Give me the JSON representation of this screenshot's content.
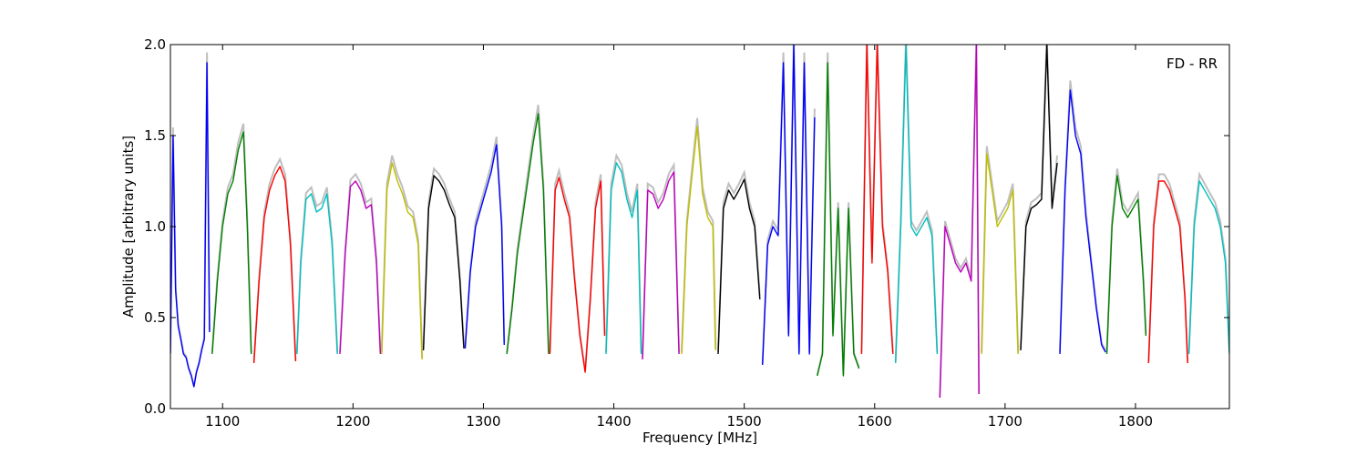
{
  "chart_data": {
    "type": "line",
    "xlabel": "Frequency [MHz]",
    "ylabel": "Amplitude [arbitrary units]",
    "xlim": [
      1060,
      1872
    ],
    "ylim": [
      0.0,
      2.0
    ],
    "xticks": [
      1100,
      1200,
      1300,
      1400,
      1500,
      1600,
      1700,
      1800
    ],
    "yticks": [
      0.0,
      0.5,
      1.0,
      1.5,
      2.0
    ],
    "xtick_labels": [
      "1100",
      "1200",
      "1300",
      "1400",
      "1500",
      "1600",
      "1700",
      "1800"
    ],
    "ytick_labels": [
      "0.0",
      "0.5",
      "1.0",
      "1.5",
      "2.0"
    ],
    "annotation": "FD - RR",
    "annotation_position": "top-right",
    "grid": false,
    "colors": {
      "background_trace": "#bfbfbf",
      "blue": "#0000ff",
      "green": "#008000",
      "red": "#ff0000",
      "cyan": "#00bfbf",
      "magenta": "#bf00bf",
      "yellow": "#bfbf00",
      "black": "#000000"
    },
    "series": [
      {
        "color": "blue",
        "x": [
          1060,
          1062,
          1064,
          1066,
          1068,
          1070,
          1072,
          1074,
          1076,
          1078,
          1080,
          1082,
          1084,
          1086,
          1088,
          1090
        ],
        "y": [
          0.3,
          1.5,
          0.65,
          0.45,
          0.38,
          0.3,
          0.28,
          0.22,
          0.18,
          0.12,
          0.2,
          0.25,
          0.32,
          0.38,
          1.9,
          0.42
        ]
      },
      {
        "color": "green",
        "x": [
          1092,
          1096,
          1100,
          1104,
          1108,
          1112,
          1116,
          1119,
          1122
        ],
        "y": [
          0.3,
          0.7,
          1.0,
          1.18,
          1.25,
          1.42,
          1.52,
          1.0,
          0.3
        ]
      },
      {
        "color": "red",
        "x": [
          1124,
          1128,
          1132,
          1136,
          1140,
          1144,
          1148,
          1152,
          1156
        ],
        "y": [
          0.25,
          0.7,
          1.05,
          1.2,
          1.28,
          1.33,
          1.25,
          0.9,
          0.26
        ]
      },
      {
        "color": "cyan",
        "x": [
          1157,
          1160,
          1164,
          1168,
          1172,
          1176,
          1180,
          1184,
          1188
        ],
        "y": [
          0.3,
          0.8,
          1.15,
          1.18,
          1.08,
          1.1,
          1.18,
          0.9,
          0.3
        ]
      },
      {
        "color": "magenta",
        "x": [
          1190,
          1194,
          1198,
          1202,
          1206,
          1210,
          1214,
          1218,
          1221
        ],
        "y": [
          0.3,
          0.85,
          1.22,
          1.25,
          1.2,
          1.1,
          1.12,
          0.8,
          0.3
        ]
      },
      {
        "color": "yellow",
        "x": [
          1222,
          1226,
          1230,
          1234,
          1238,
          1242,
          1246,
          1250,
          1253
        ],
        "y": [
          0.3,
          1.2,
          1.35,
          1.25,
          1.18,
          1.08,
          1.05,
          0.9,
          0.27
        ]
      },
      {
        "color": "black",
        "x": [
          1254,
          1258,
          1262,
          1266,
          1270,
          1274,
          1278,
          1282,
          1285
        ],
        "y": [
          0.32,
          1.1,
          1.28,
          1.25,
          1.2,
          1.12,
          1.05,
          0.7,
          0.33
        ]
      },
      {
        "color": "blue",
        "x": [
          1286,
          1290,
          1294,
          1298,
          1302,
          1306,
          1310,
          1314,
          1316
        ],
        "y": [
          0.33,
          0.75,
          1.0,
          1.1,
          1.2,
          1.3,
          1.45,
          1.0,
          0.35
        ]
      },
      {
        "color": "green",
        "x": [
          1318,
          1322,
          1326,
          1330,
          1334,
          1338,
          1342,
          1346,
          1350
        ],
        "y": [
          0.3,
          0.55,
          0.85,
          1.05,
          1.25,
          1.45,
          1.62,
          1.2,
          0.3
        ]
      },
      {
        "color": "red",
        "x": [
          1351,
          1355,
          1358,
          1362,
          1366,
          1370,
          1374,
          1378,
          1382,
          1386,
          1390,
          1393
        ],
        "y": [
          0.3,
          1.2,
          1.27,
          1.15,
          1.05,
          0.7,
          0.4,
          0.2,
          0.6,
          1.1,
          1.25,
          0.4
        ]
      },
      {
        "color": "cyan",
        "x": [
          1394,
          1398,
          1402,
          1406,
          1410,
          1414,
          1418,
          1421
        ],
        "y": [
          0.3,
          1.2,
          1.35,
          1.3,
          1.15,
          1.05,
          1.2,
          0.3
        ]
      },
      {
        "color": "magenta",
        "x": [
          1422,
          1426,
          1430,
          1434,
          1438,
          1442,
          1446,
          1450
        ],
        "y": [
          0.27,
          1.2,
          1.18,
          1.1,
          1.15,
          1.25,
          1.3,
          0.3
        ]
      },
      {
        "color": "yellow",
        "x": [
          1452,
          1456,
          1460,
          1464,
          1468,
          1472,
          1476,
          1478
        ],
        "y": [
          0.3,
          1.0,
          1.28,
          1.55,
          1.18,
          1.05,
          1.0,
          0.32
        ]
      },
      {
        "color": "black",
        "x": [
          1480,
          1484,
          1488,
          1492,
          1496,
          1500,
          1504,
          1508,
          1512
        ],
        "y": [
          0.3,
          1.1,
          1.2,
          1.15,
          1.2,
          1.26,
          1.1,
          1.0,
          0.6
        ]
      },
      {
        "color": "blue",
        "x": [
          1514,
          1518,
          1522,
          1526,
          1530,
          1534,
          1538,
          1542,
          1546,
          1550,
          1554
        ],
        "y": [
          0.24,
          0.9,
          1.0,
          0.95,
          1.9,
          0.4,
          2.0,
          0.3,
          1.9,
          0.3,
          1.6
        ]
      },
      {
        "color": "green",
        "x": [
          1556,
          1560,
          1564,
          1568,
          1572,
          1576,
          1580,
          1584,
          1588
        ],
        "y": [
          0.18,
          0.3,
          1.9,
          0.4,
          1.1,
          0.18,
          1.1,
          0.3,
          0.22
        ]
      },
      {
        "color": "red",
        "x": [
          1590,
          1594,
          1598,
          1602,
          1606,
          1610,
          1614
        ],
        "y": [
          0.3,
          2.0,
          0.8,
          2.0,
          1.0,
          0.75,
          0.3
        ]
      },
      {
        "color": "cyan",
        "x": [
          1616,
          1620,
          1624,
          1628,
          1632,
          1636,
          1640,
          1644,
          1648
        ],
        "y": [
          0.25,
          1.0,
          2.0,
          1.0,
          0.95,
          1.0,
          1.05,
          0.95,
          0.3
        ]
      },
      {
        "color": "magenta",
        "x": [
          1650,
          1654,
          1658,
          1662,
          1666,
          1670,
          1674,
          1678,
          1680
        ],
        "y": [
          0.06,
          1.0,
          0.9,
          0.8,
          0.75,
          0.8,
          0.7,
          2.0,
          0.08
        ]
      },
      {
        "color": "yellow",
        "x": [
          1682,
          1686,
          1690,
          1694,
          1698,
          1702,
          1706,
          1710
        ],
        "y": [
          0.3,
          1.4,
          1.2,
          1.0,
          1.05,
          1.1,
          1.2,
          0.3
        ]
      },
      {
        "color": "black",
        "x": [
          1712,
          1716,
          1720,
          1724,
          1728,
          1732,
          1736,
          1740
        ],
        "y": [
          0.32,
          1.0,
          1.1,
          1.12,
          1.15,
          2.0,
          1.1,
          1.35
        ]
      },
      {
        "color": "blue",
        "x": [
          1742,
          1746,
          1750,
          1754,
          1758,
          1762,
          1766,
          1770,
          1774,
          1777
        ],
        "y": [
          0.3,
          1.2,
          1.75,
          1.5,
          1.4,
          1.05,
          0.8,
          0.55,
          0.35,
          0.31
        ]
      },
      {
        "color": "green",
        "x": [
          1778,
          1782,
          1786,
          1790,
          1794,
          1798,
          1802,
          1806,
          1808
        ],
        "y": [
          0.3,
          1.0,
          1.28,
          1.1,
          1.05,
          1.1,
          1.15,
          0.7,
          0.4
        ]
      },
      {
        "color": "red",
        "x": [
          1810,
          1814,
          1818,
          1822,
          1826,
          1830,
          1834,
          1838,
          1840
        ],
        "y": [
          0.25,
          1.0,
          1.25,
          1.25,
          1.2,
          1.1,
          1.0,
          0.6,
          0.25
        ]
      },
      {
        "color": "cyan",
        "x": [
          1841,
          1845,
          1849,
          1853,
          1857,
          1861,
          1865,
          1869,
          1872
        ],
        "y": [
          0.3,
          1.0,
          1.25,
          1.2,
          1.15,
          1.1,
          1.0,
          0.8,
          0.3
        ]
      }
    ]
  }
}
